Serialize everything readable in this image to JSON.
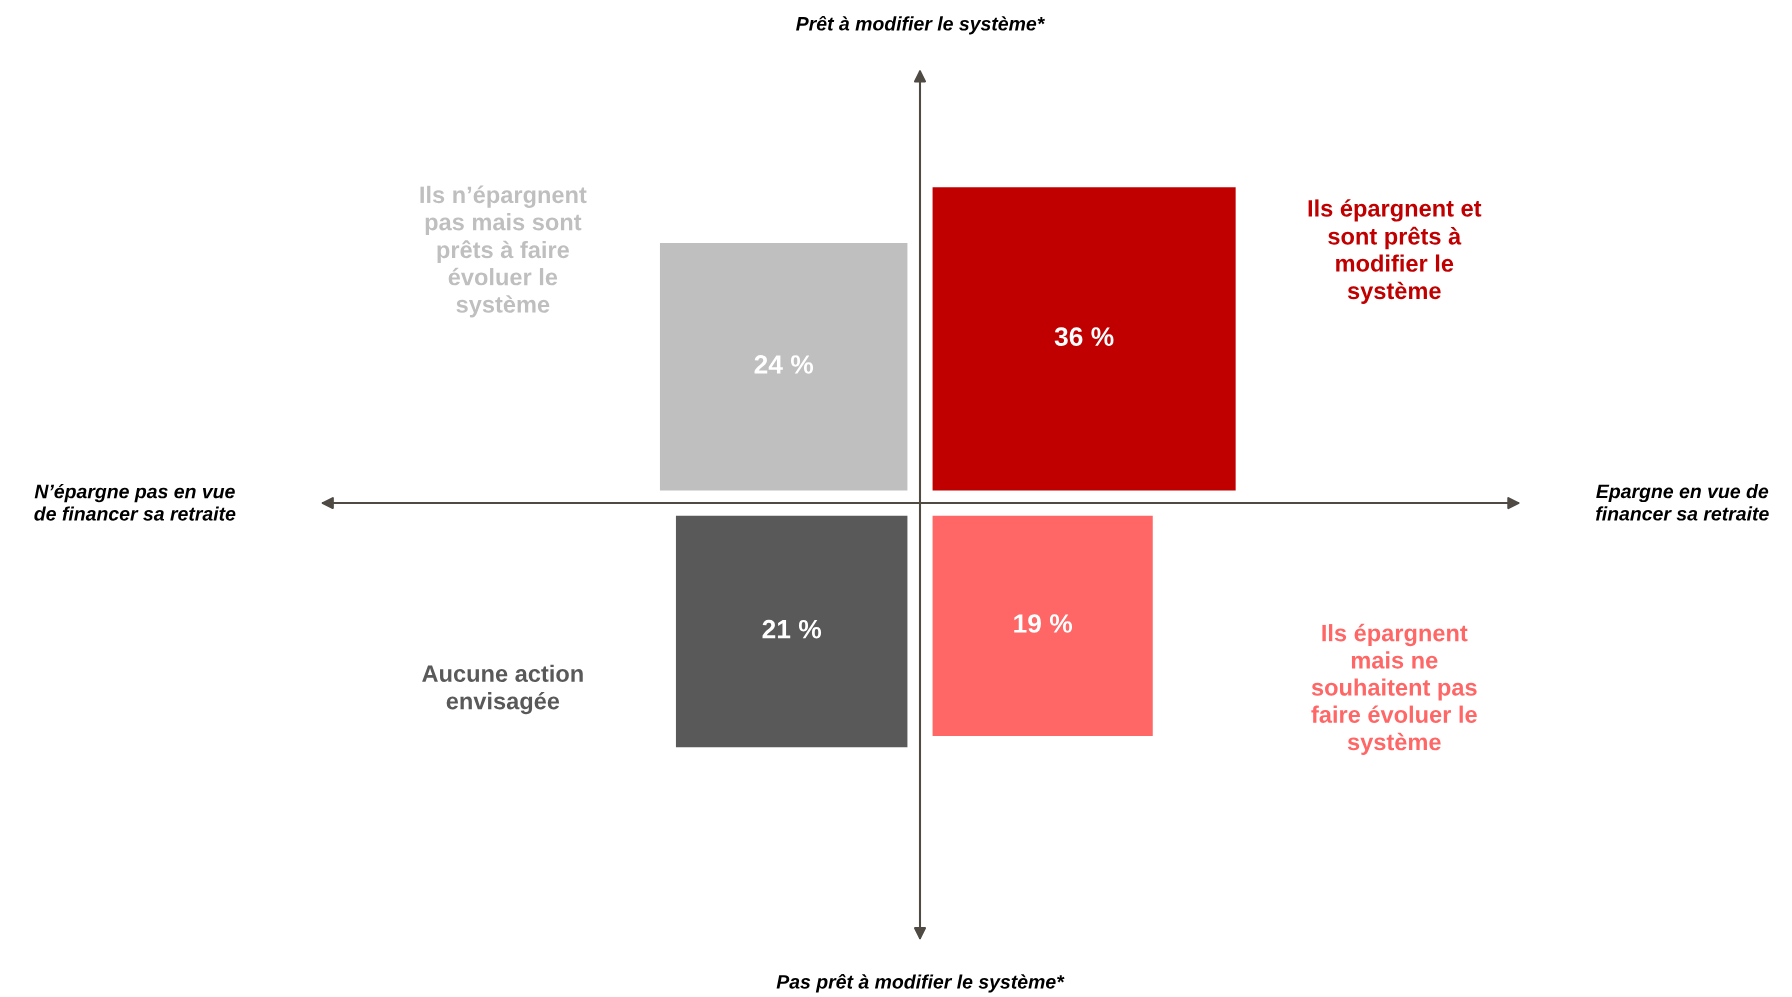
{
  "chart_data": {
    "type": "other",
    "categories": [
      "Ils n’épargnent\npas mais sont\nprêts à faire\névoluer le\nsystème",
      "Ils épargnent et\nsont prêts à\nmodifier le\nsystème",
      "Aucune action\nenvisagée",
      "Ils épargnent\nmais ne\nsouhaitent pas\nfaire évoluer le\nsystème"
    ],
    "values": [
      24,
      36,
      21,
      19
    ],
    "value_labels": [
      "24 %",
      "36 %",
      "21 %",
      "19 %"
    ],
    "colors": [
      "#bfbfbf",
      "#c00000",
      "#595959",
      "#ff6666"
    ],
    "annotations": [
      "Prêt à modifier le système*",
      "Pas prêt à modifier le système*",
      "N’épargne pas en vue\nde financer sa retraite",
      "Epargne en vue de\nfinancer sa retraite"
    ]
  }
}
